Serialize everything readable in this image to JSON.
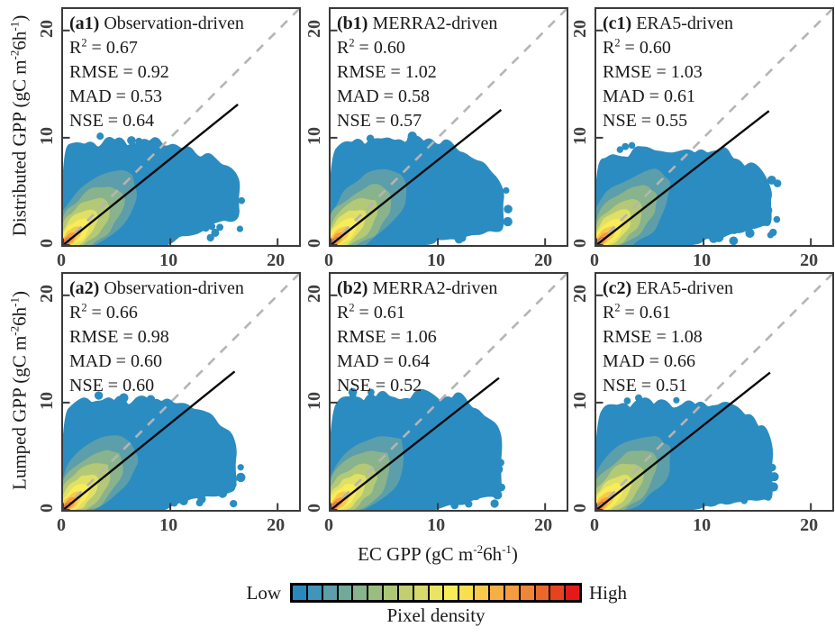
{
  "chart_data": {
    "type": "scatter",
    "subtype": "density-scatter-grid-2x3",
    "x_label": "EC GPP (gC m⁻²6h⁻¹)",
    "row_y_labels": [
      "Distributed GPP (gC m⁻²6h⁻¹)",
      "Lumped GPP (gC m⁻²6h⁻¹)"
    ],
    "x_range": [
      0,
      22
    ],
    "y_range": [
      0,
      22
    ],
    "ticks": [
      0,
      10,
      20
    ],
    "grid": false,
    "identity_line": {
      "style": "dashed",
      "color": "#b5b5b5"
    },
    "fit_line_color": "#0a0a0a",
    "point_color": "#2b8cc1",
    "stat_labels": [
      "R²",
      "RMSE",
      "MAD",
      "NSE"
    ],
    "panels": [
      {
        "id": "a1",
        "row": 0,
        "col": 0,
        "label": "(a1)",
        "title": "Observation-driven",
        "stats": [
          0.67,
          0.92,
          0.53,
          0.64
        ],
        "fit_line": {
          "x": [
            0,
            16.3
          ],
          "y": [
            0,
            13.1
          ]
        },
        "cloud": {
          "x_max": 16.3,
          "y_max": 9.7,
          "top_end": 10.5,
          "right_top": 6.6,
          "right_low": 2.0,
          "seed": 3
        }
      },
      {
        "id": "b1",
        "row": 0,
        "col": 1,
        "label": "(b1)",
        "title": "MERRA2-driven",
        "stats": [
          0.6,
          1.02,
          0.58,
          0.57
        ],
        "fit_line": {
          "x": [
            0,
            15.9
          ],
          "y": [
            0,
            12.6
          ]
        },
        "cloud": {
          "x_max": 16.0,
          "y_max": 9.9,
          "top_end": 11.2,
          "right_top": 5.8,
          "right_low": 1.1,
          "seed": 7
        }
      },
      {
        "id": "c1",
        "row": 0,
        "col": 2,
        "label": "(c1)",
        "title": "ERA5-driven",
        "stats": [
          0.6,
          1.03,
          0.61,
          0.55
        ],
        "fit_line": {
          "x": [
            0,
            16.1
          ],
          "y": [
            0,
            12.5
          ]
        },
        "cloud": {
          "x_max": 16.2,
          "y_max": 8.8,
          "top_end": 12.0,
          "right_top": 6.2,
          "right_low": 1.6,
          "seed": 12
        }
      },
      {
        "id": "a2",
        "row": 1,
        "col": 0,
        "label": "(a2)",
        "title": "Observation-driven",
        "stats": [
          0.66,
          0.98,
          0.6,
          0.6
        ],
        "fit_line": {
          "x": [
            0,
            16.0
          ],
          "y": [
            0,
            12.9
          ]
        },
        "cloud": {
          "x_max": 16.0,
          "y_max": 10.3,
          "top_end": 10.8,
          "right_top": 7.0,
          "right_low": 1.2,
          "seed": 21
        }
      },
      {
        "id": "b2",
        "row": 1,
        "col": 1,
        "label": "(b2)",
        "title": "MERRA2-driven",
        "stats": [
          0.61,
          1.06,
          0.64,
          0.52
        ],
        "fit_line": {
          "x": [
            0,
            15.7
          ],
          "y": [
            0,
            12.3
          ]
        },
        "cloud": {
          "x_max": 15.8,
          "y_max": 10.6,
          "top_end": 12.4,
          "right_top": 7.4,
          "right_low": 0.8,
          "seed": 29
        }
      },
      {
        "id": "c2",
        "row": 1,
        "col": 2,
        "label": "(c2)",
        "title": "ERA5-driven",
        "stats": [
          0.61,
          1.08,
          0.66,
          0.51
        ],
        "fit_line": {
          "x": [
            0,
            16.2
          ],
          "y": [
            0,
            12.8
          ]
        },
        "cloud": {
          "x_max": 16.3,
          "y_max": 10.0,
          "top_end": 12.6,
          "right_top": 7.0,
          "right_low": 0.6,
          "seed": 35
        }
      }
    ],
    "density_levels": [
      {
        "color": "#5c9eaa",
        "len": 9.2,
        "wid": 5.4
      },
      {
        "color": "#89b38c",
        "len": 7.4,
        "wid": 4.3
      },
      {
        "color": "#b4c975",
        "len": 5.8,
        "wid": 3.2
      },
      {
        "color": "#e0e065",
        "len": 4.4,
        "wid": 2.35
      },
      {
        "color": "#f8ec58",
        "len": 3.3,
        "wid": 1.7
      },
      {
        "color": "#f8c94a",
        "len": 2.35,
        "wid": 1.15
      },
      {
        "color": "#f49c3f",
        "len": 1.6,
        "wid": 0.75
      },
      {
        "color": "#eb672b",
        "len": 1.0,
        "wid": 0.47
      },
      {
        "color": "#e31a1c",
        "len": 0.52,
        "wid": 0.25
      }
    ],
    "colorbar": {
      "low_label": "Low",
      "high_label": "High",
      "title": "Pixel density",
      "colors": [
        "#2989bf",
        "#4194ba",
        "#5c9eaa",
        "#73a99b",
        "#89b38c",
        "#9bbc7f",
        "#adc577",
        "#c1ce72",
        "#d6d96c",
        "#e9e463",
        "#f6ed57",
        "#f8df4f",
        "#f8c94a",
        "#f7af45",
        "#f49c3f",
        "#ef8536",
        "#eb672b",
        "#e64320",
        "#e31a1c"
      ]
    }
  }
}
